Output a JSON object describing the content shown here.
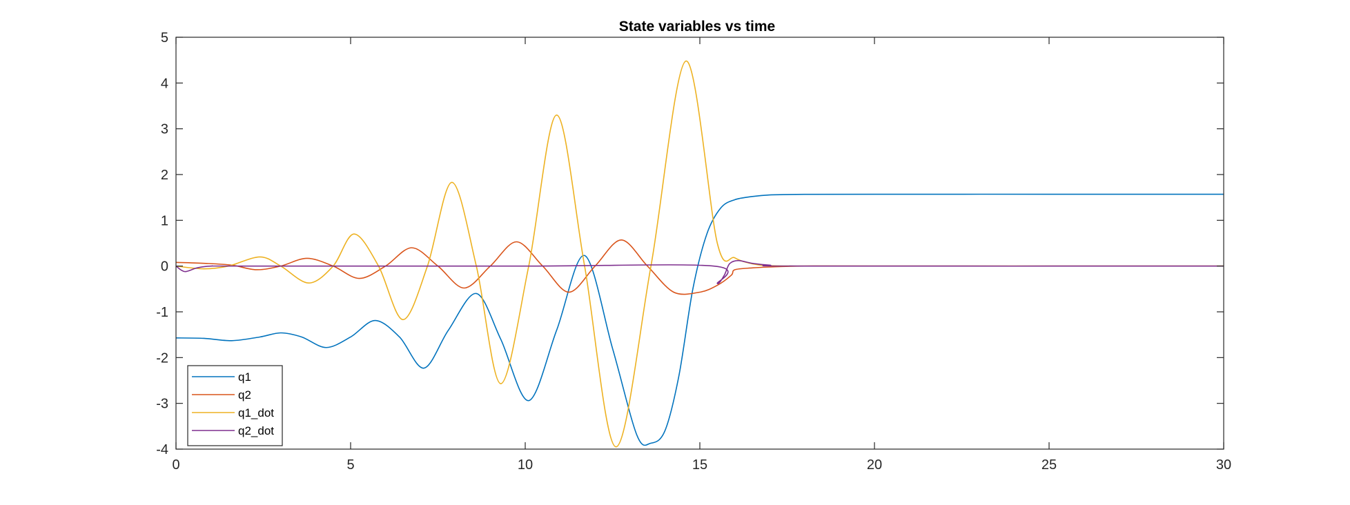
{
  "chart_data": {
    "type": "line",
    "title": "State variables vs time",
    "xlabel": "",
    "ylabel": "",
    "xlim": [
      0,
      30
    ],
    "ylim": [
      -4,
      5
    ],
    "xticks": [
      0,
      5,
      10,
      15,
      20,
      25,
      30
    ],
    "yticks": [
      -4,
      -3,
      -2,
      -1,
      0,
      1,
      2,
      3,
      4,
      5
    ],
    "grid": false,
    "legend_position": "bottom-left",
    "colors": {
      "q1": "#0072BD",
      "q2": "#D95319",
      "q1_dot": "#EDB120",
      "q2_dot": "#7E2F8E",
      "axes": "#262626"
    },
    "series": [
      {
        "name": "q1",
        "color": "#0072BD",
        "x": [
          0,
          0.8,
          1.6,
          2.4,
          3.0,
          3.6,
          4.3,
          5.0,
          5.7,
          6.4,
          7.1,
          7.8,
          8.6,
          9.3,
          10.1,
          10.9,
          11.7,
          12.5,
          13.2,
          13.6,
          14.0,
          14.4,
          14.8,
          15.2,
          15.6,
          16.0,
          16.5,
          17.0,
          18.0,
          20.0,
          25.0,
          30.0
        ],
        "y": [
          -1.57,
          -1.58,
          -1.63,
          -1.55,
          -1.46,
          -1.55,
          -1.78,
          -1.55,
          -1.19,
          -1.55,
          -2.23,
          -1.4,
          -0.6,
          -1.6,
          -2.94,
          -1.4,
          0.23,
          -1.8,
          -3.7,
          -3.87,
          -3.6,
          -2.4,
          -0.5,
          0.7,
          1.27,
          1.45,
          1.52,
          1.555,
          1.567,
          1.57,
          1.57,
          1.57
        ]
      },
      {
        "name": "q2",
        "color": "#D95319",
        "x": [
          0,
          0.8,
          1.6,
          2.3,
          3.0,
          3.75,
          4.5,
          5.25,
          6.0,
          6.75,
          7.5,
          8.25,
          9.0,
          9.75,
          10.5,
          11.25,
          12.0,
          12.75,
          13.5,
          14.25,
          15.0,
          15.5,
          15.9,
          16.0,
          16.5,
          17.0,
          18.0,
          20.0,
          30.0
        ],
        "y": [
          0.08,
          0.06,
          0.02,
          -0.08,
          0.0,
          0.17,
          0.0,
          -0.27,
          0.0,
          0.4,
          0.0,
          -0.48,
          0.0,
          0.53,
          0.0,
          -0.57,
          0.0,
          0.57,
          0.0,
          -0.57,
          -0.57,
          -0.42,
          -0.2,
          -0.08,
          -0.04,
          -0.02,
          0.0,
          0.0,
          0.0
        ]
      },
      {
        "name": "q1_dot",
        "color": "#EDB120",
        "x": [
          0,
          0.8,
          1.5,
          2.4,
          3.0,
          3.8,
          4.5,
          5.1,
          5.8,
          6.5,
          7.2,
          7.9,
          8.6,
          9.3,
          10.1,
          10.9,
          11.7,
          12.6,
          13.6,
          14.6,
          15.5,
          16.0,
          16.5,
          17.0,
          18.0,
          20.0,
          30.0
        ],
        "y": [
          0.0,
          -0.06,
          0.0,
          0.2,
          0.0,
          -0.37,
          0.0,
          0.7,
          0.0,
          -1.17,
          0.0,
          1.83,
          0.0,
          -2.57,
          0.0,
          3.3,
          0.0,
          -3.95,
          0.0,
          4.48,
          0.5,
          0.18,
          0.05,
          0.01,
          0.0,
          0.0,
          0.0
        ]
      },
      {
        "name": "q2_dot",
        "color": "#7E2F8E",
        "x": [
          0,
          0.25,
          0.6,
          1.0,
          2.0,
          10.0,
          15.4,
          15.5,
          15.7,
          15.85,
          16.1,
          16.5,
          17.0,
          18.0,
          30.0
        ],
        "y": [
          0.0,
          -0.12,
          -0.04,
          0.0,
          0.0,
          0.0,
          0.0,
          -0.38,
          -0.2,
          0.05,
          0.12,
          0.06,
          0.02,
          0.0,
          0.0
        ]
      }
    ]
  }
}
